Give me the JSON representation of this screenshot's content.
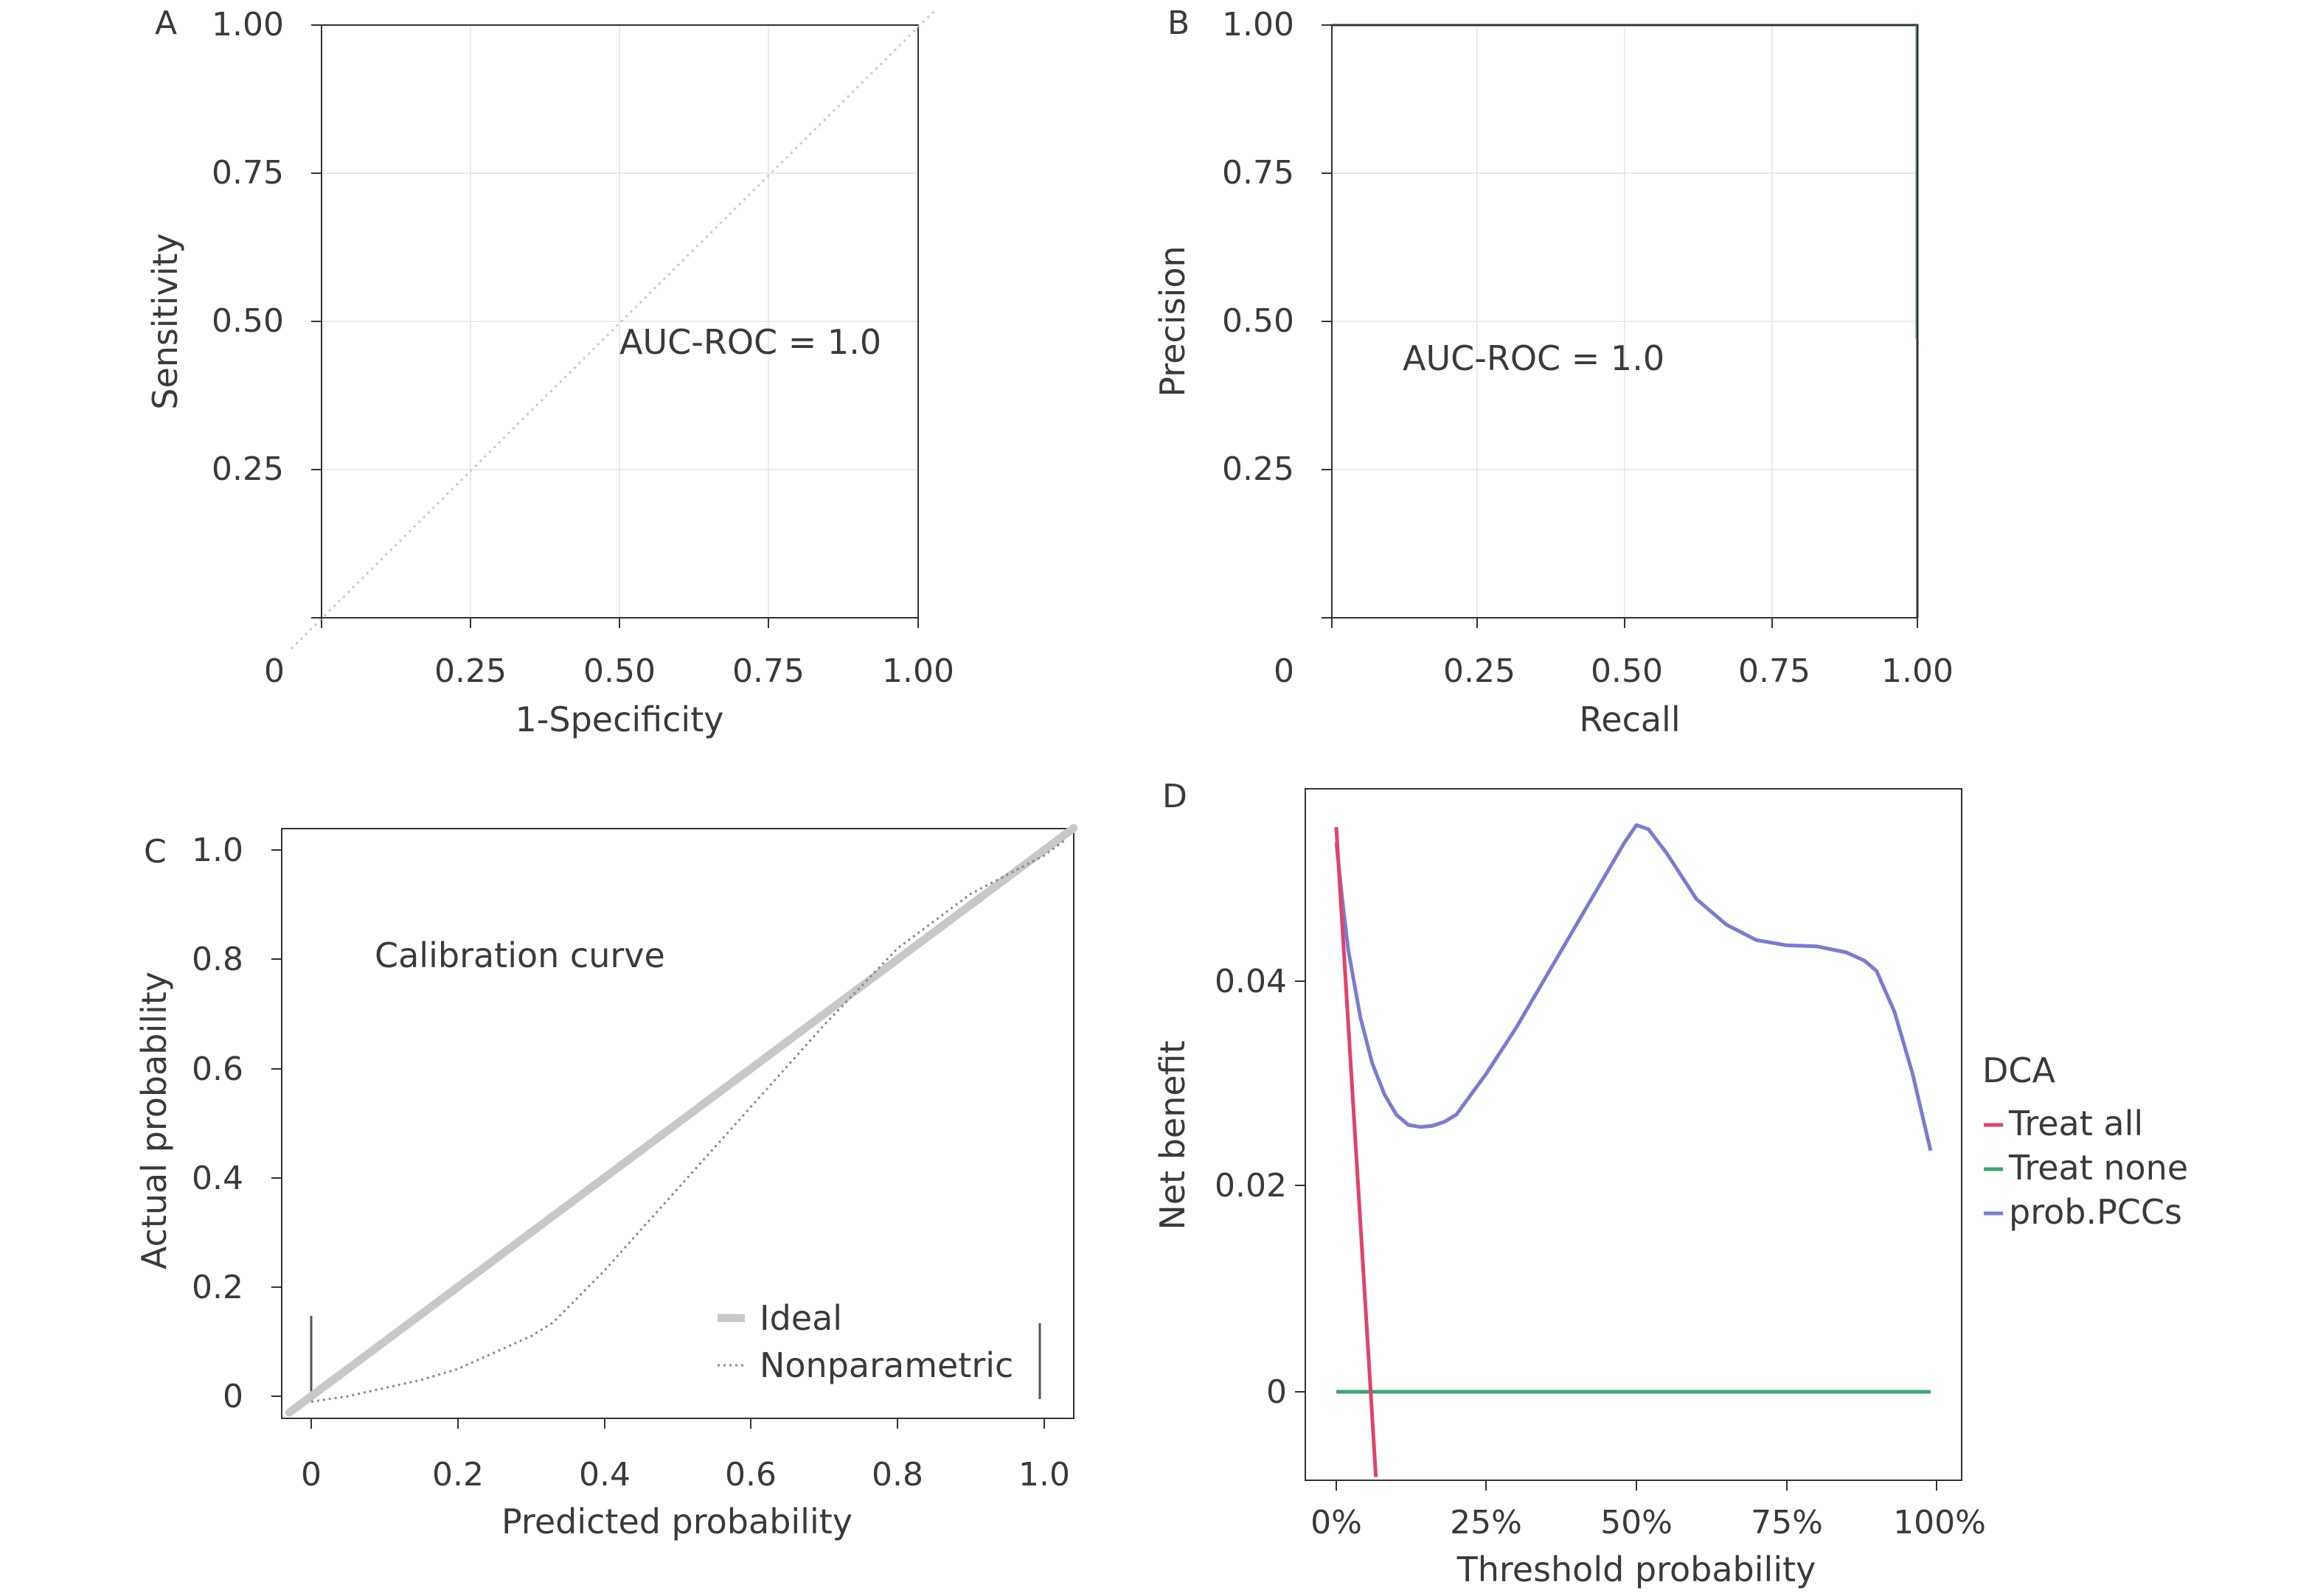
{
  "figure": {
    "type": "multi-panel"
  },
  "colors": {
    "axis": "#333333",
    "text": "#3a3a3a",
    "reference": "#cfcfcf",
    "treat_all": "#e0436a",
    "treat_none": "#3aa672",
    "model": "#7b7bd2",
    "ideal": "#c8c8c8"
  },
  "chart_data": [
    {
      "panel": "A",
      "type": "line",
      "xlabel": "1-Specificity",
      "ylabel": "Sensitivity",
      "xlim": [
        0,
        1
      ],
      "ylim": [
        0,
        1
      ],
      "x_ticks": [
        "0",
        "0.25",
        "0.50",
        "0.75",
        "1.00"
      ],
      "y_ticks": [
        "0.25",
        "0.50",
        "0.75",
        "1.00"
      ],
      "annotation": "AUC-ROC = 1.0",
      "grid": true,
      "series": [
        {
          "style": "dotted",
          "x": [
            0,
            1
          ],
          "y": [
            0,
            1
          ]
        }
      ]
    },
    {
      "panel": "B",
      "type": "line",
      "xlabel": "Recall",
      "ylabel": "Precision",
      "xlim": [
        0,
        1
      ],
      "ylim": [
        0,
        1
      ],
      "x_ticks": [
        "0",
        "0.25",
        "0.50",
        "0.75",
        "1.00"
      ],
      "y_ticks": [
        "0.25",
        "0.50",
        "0.75",
        "1.00"
      ],
      "annotation": "AUC-ROC = 1.0",
      "grid": true,
      "series": [
        {
          "style": "solid",
          "x": [
            0,
            1,
            1
          ],
          "y": [
            1,
            1,
            0
          ]
        }
      ]
    },
    {
      "panel": "C",
      "type": "line",
      "title": "Calibration curve",
      "xlabel": "Predicted probability",
      "ylabel": "Actual probability",
      "xlim": [
        -0.04,
        1.04
      ],
      "ylim": [
        -0.04,
        1.04
      ],
      "x_ticks": [
        "0",
        "0.2",
        "0.4",
        "0.6",
        "0.8",
        "1.0"
      ],
      "y_ticks": [
        "0",
        "0.2",
        "0.4",
        "0.6",
        "0.8",
        "1.0"
      ],
      "legend_position": "bottom-right",
      "series": [
        {
          "name": "Ideal",
          "style": "thick",
          "x": [
            -0.03,
            1.04
          ],
          "y": [
            -0.03,
            1.04
          ]
        },
        {
          "name": "Nonparametric",
          "style": "dotted",
          "x": [
            0,
            0.05,
            0.1,
            0.15,
            0.2,
            0.25,
            0.3,
            0.33,
            0.4,
            0.5,
            0.6,
            0.7,
            0.8,
            0.9,
            1.0,
            1.03
          ],
          "y": [
            -0.01,
            0.0,
            0.015,
            0.03,
            0.05,
            0.08,
            0.11,
            0.135,
            0.23,
            0.38,
            0.53,
            0.68,
            0.82,
            0.92,
            0.99,
            1.02
          ]
        }
      ]
    },
    {
      "panel": "D",
      "type": "line",
      "xlabel": "Threshold probability",
      "ylabel": "Net benefit",
      "xlim": [
        -0.05,
        1.04
      ],
      "ylim": [
        -0.008,
        0.058
      ],
      "x_ticks": [
        "0%",
        "25%",
        "50%",
        "75%",
        "100%"
      ],
      "y_ticks": [
        "0",
        "0.02",
        "0.04"
      ],
      "legend_title": "DCA",
      "legend_position": "right",
      "series": [
        {
          "name": "Treat all",
          "x": [
            0,
            0.066
          ],
          "y": [
            0.055,
            -0.0083
          ]
        },
        {
          "name": "Treat none",
          "x": [
            0,
            0.99
          ],
          "y": [
            0,
            0
          ]
        },
        {
          "name": "prob.PCCs",
          "x": [
            0,
            0.01,
            0.02,
            0.04,
            0.06,
            0.08,
            0.1,
            0.12,
            0.14,
            0.16,
            0.18,
            0.2,
            0.25,
            0.3,
            0.35,
            0.4,
            0.45,
            0.48,
            0.5,
            0.52,
            0.55,
            0.6,
            0.65,
            0.7,
            0.75,
            0.8,
            0.85,
            0.88,
            0.9,
            0.93,
            0.96,
            0.99
          ],
          "y": [
            0.0535,
            0.048,
            0.043,
            0.0365,
            0.032,
            0.029,
            0.027,
            0.026,
            0.0258,
            0.0259,
            0.0263,
            0.027,
            0.031,
            0.0355,
            0.0405,
            0.0455,
            0.0505,
            0.0535,
            0.0552,
            0.0548,
            0.0525,
            0.048,
            0.0455,
            0.044,
            0.0435,
            0.0434,
            0.0428,
            0.042,
            0.041,
            0.037,
            0.031,
            0.0235
          ]
        }
      ]
    }
  ]
}
